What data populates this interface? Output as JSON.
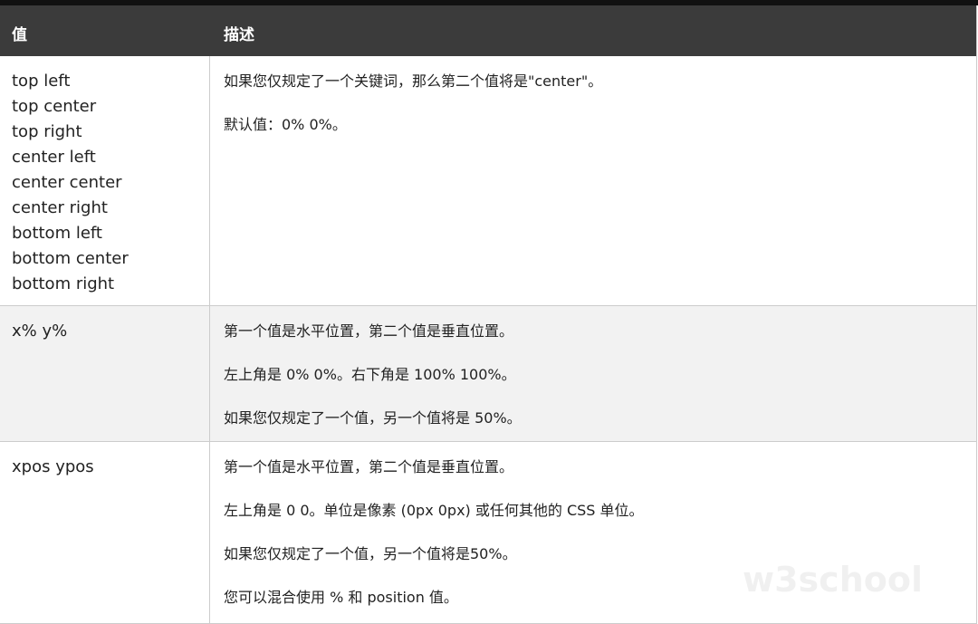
{
  "table": {
    "header": [
      "值",
      "描述"
    ],
    "rows": [
      {
        "values": [
          "top left",
          "top center",
          "top right",
          "center left",
          "center center",
          "center right",
          "bottom left",
          "bottom center",
          "bottom right"
        ],
        "description": [
          "如果您仅规定了一个关键词，那么第二个值将是\"center\"。",
          "默认值：0% 0%。"
        ]
      },
      {
        "values": [
          "x% y%"
        ],
        "description": [
          "第一个值是水平位置，第二个值是垂直位置。",
          "左上角是 0% 0%。右下角是 100% 100%。",
          "如果您仅规定了一个值，另一个值将是 50%。"
        ]
      },
      {
        "values": [
          "xpos ypos"
        ],
        "description": [
          "第一个值是水平位置，第二个值是垂直位置。",
          "左上角是 0 0。单位是像素 (0px 0px) 或任何其他的 CSS 单位。",
          "如果您仅规定了一个值，另一个值将是50%。",
          "您可以混合使用 % 和 position 值。"
        ]
      }
    ]
  },
  "watermark": "w3school"
}
